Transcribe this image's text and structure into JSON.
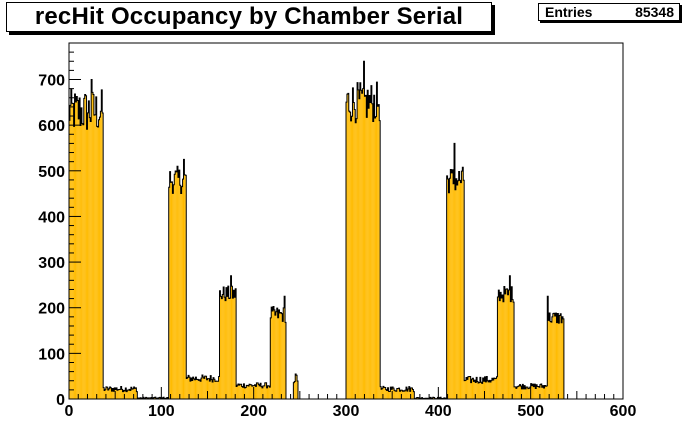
{
  "title": "recHit Occupancy by Chamber Serial",
  "stats": {
    "label": "Entries",
    "value": "85348"
  },
  "colors": {
    "fill": "#ffbb00",
    "line": "#000000",
    "frame": "#000000"
  },
  "chart_data": {
    "type": "bar",
    "title": "recHit Occupancy by Chamber Serial",
    "xlabel": "",
    "ylabel": "",
    "xlim": [
      0,
      600
    ],
    "ylim": [
      0,
      780
    ],
    "x_ticks": [
      0,
      100,
      200,
      300,
      400,
      500,
      600
    ],
    "y_ticks": [
      0,
      100,
      200,
      300,
      400,
      500,
      600,
      700
    ],
    "grid": false,
    "entries": 85348,
    "segments": [
      {
        "x0": 0,
        "x1": 37,
        "level": 630,
        "spread": 50,
        "peak": 700
      },
      {
        "x0": 37,
        "x1": 74,
        "level": 22,
        "spread": 6
      },
      {
        "x0": 74,
        "x1": 108,
        "level": 2,
        "spread": 2
      },
      {
        "x0": 108,
        "x1": 127,
        "level": 480,
        "spread": 30,
        "peak": 525
      },
      {
        "x0": 127,
        "x1": 163,
        "level": 45,
        "spread": 8
      },
      {
        "x0": 163,
        "x1": 181,
        "level": 230,
        "spread": 18,
        "peak": 270
      },
      {
        "x0": 181,
        "x1": 218,
        "level": 30,
        "spread": 6
      },
      {
        "x0": 218,
        "x1": 235,
        "level": 185,
        "spread": 18,
        "peak": 225
      },
      {
        "x0": 235,
        "x1": 243,
        "level": 0,
        "spread": 0
      },
      {
        "x0": 243,
        "x1": 248,
        "level": 45,
        "spread": 12
      },
      {
        "x0": 248,
        "x1": 300,
        "level": 0,
        "spread": 0
      },
      {
        "x0": 300,
        "x1": 337,
        "level": 650,
        "spread": 45,
        "peak": 740
      },
      {
        "x0": 337,
        "x1": 374,
        "level": 22,
        "spread": 6
      },
      {
        "x0": 374,
        "x1": 409,
        "level": 2,
        "spread": 2
      },
      {
        "x0": 409,
        "x1": 428,
        "level": 480,
        "spread": 30,
        "peak": 560
      },
      {
        "x0": 428,
        "x1": 464,
        "level": 42,
        "spread": 8
      },
      {
        "x0": 464,
        "x1": 482,
        "level": 230,
        "spread": 18,
        "peak": 270
      },
      {
        "x0": 482,
        "x1": 518,
        "level": 28,
        "spread": 6
      },
      {
        "x0": 518,
        "x1": 536,
        "level": 178,
        "spread": 15,
        "peak": 225
      },
      {
        "x0": 536,
        "x1": 600,
        "level": 0,
        "spread": 0
      }
    ]
  }
}
